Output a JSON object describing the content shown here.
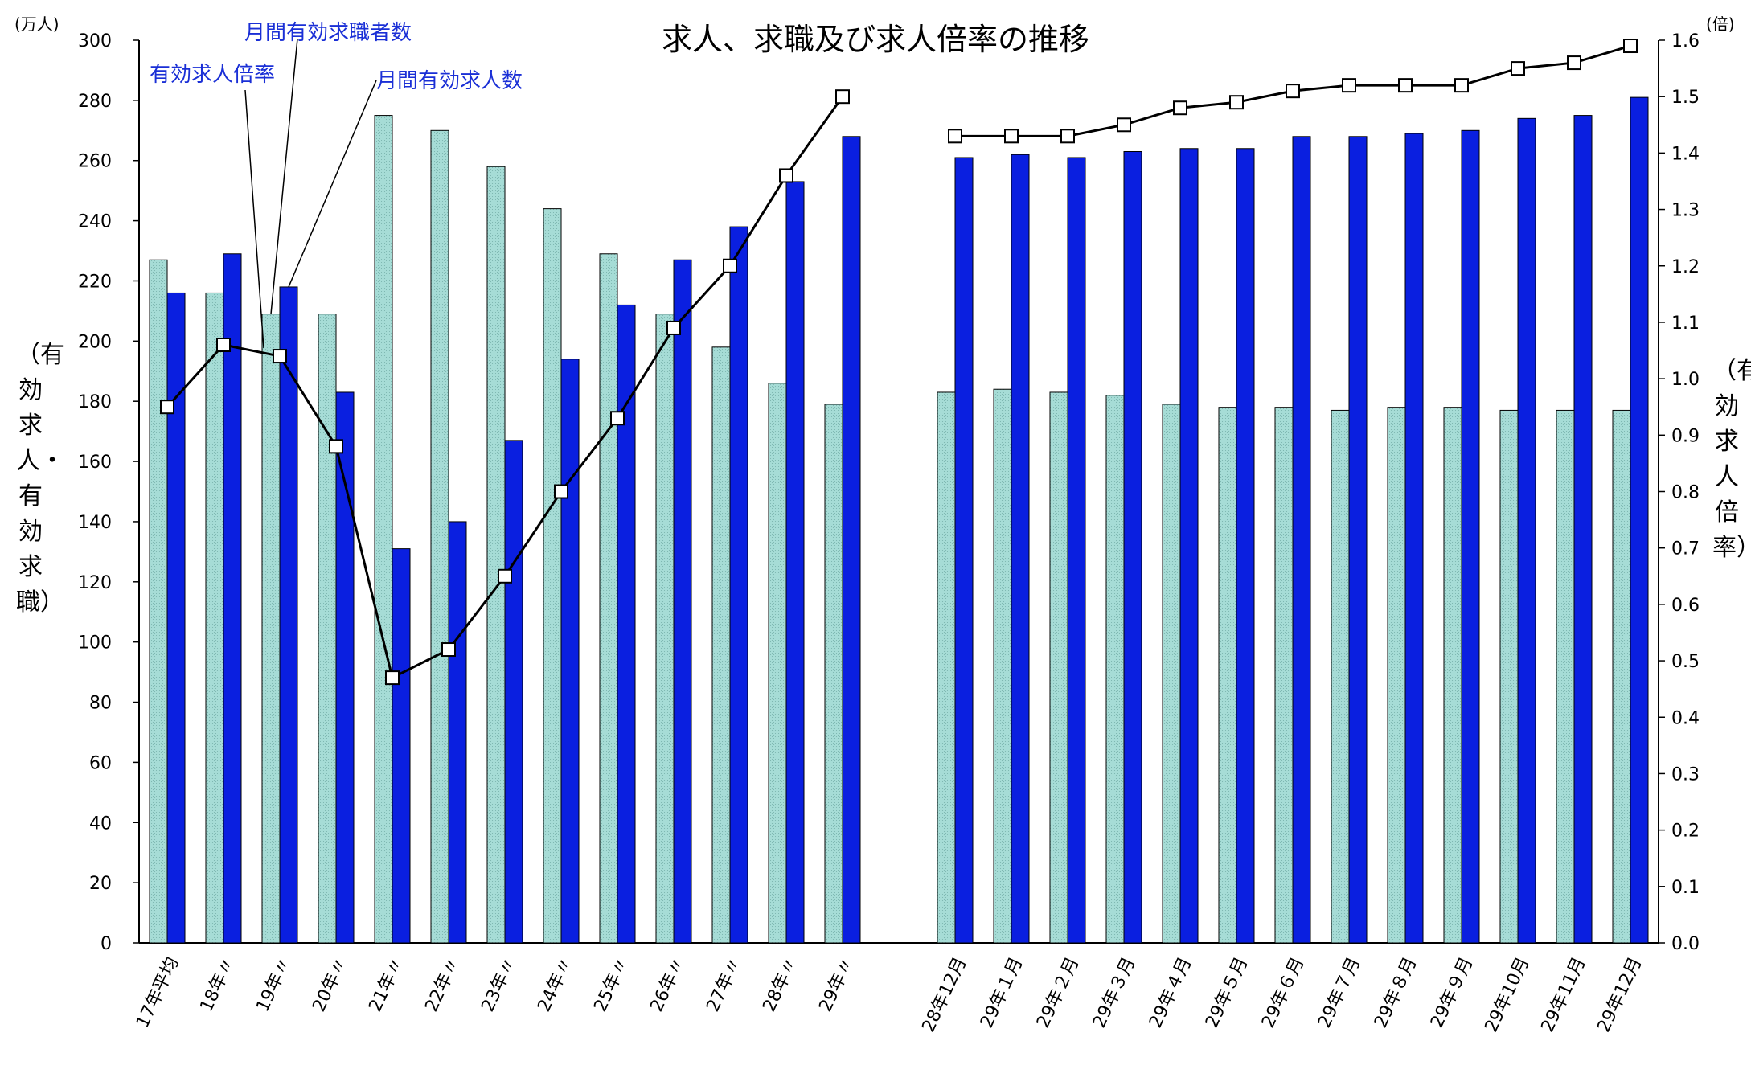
{
  "chart_data": {
    "type": "bar",
    "title": "求人、求職及び求人倍率の推移",
    "left_unit": "(万人)",
    "right_unit": "(倍)",
    "ylabel": "（有効求人・有効求職）",
    "y2label": "（有効求人倍率）",
    "ylim": [
      0,
      300
    ],
    "y_ticks": [
      0,
      20,
      40,
      60,
      80,
      100,
      120,
      140,
      160,
      180,
      200,
      220,
      240,
      260,
      280,
      300
    ],
    "y2lim": [
      0.0,
      1.6
    ],
    "y2_ticks": [
      "0.0",
      "0.1",
      "0.2",
      "0.3",
      "0.4",
      "0.5",
      "0.6",
      "0.7",
      "0.8",
      "0.9",
      "1.0",
      "1.1",
      "1.2",
      "1.3",
      "1.4",
      "1.5",
      "1.6"
    ],
    "grid": false,
    "categories": [
      "17年平均",
      "18年〃",
      "19年〃",
      "20年〃",
      "21年〃",
      "22年〃",
      "23年〃",
      "24年〃",
      "25年〃",
      "26年〃",
      "27年〃",
      "28年〃",
      "29年〃",
      "",
      "28年12月",
      "29年１月",
      "29年２月",
      "29年３月",
      "29年４月",
      "29年５月",
      "29年６月",
      "29年７月",
      "29年８月",
      "29年９月",
      "29年10月",
      "29年11月",
      "29年12月"
    ],
    "series": [
      {
        "name": "月間有効求職者数",
        "type": "bar",
        "axis": "left",
        "color": "#a6dcd6",
        "values": [
          227,
          216,
          209,
          209,
          275,
          270,
          258,
          244,
          229,
          209,
          198,
          186,
          179,
          null,
          183,
          184,
          183,
          182,
          179,
          178,
          178,
          177,
          178,
          178,
          177,
          177,
          177
        ]
      },
      {
        "name": "月間有効求人数",
        "type": "bar",
        "axis": "left",
        "color": "#0a1fe0",
        "values": [
          216,
          229,
          218,
          183,
          131,
          140,
          167,
          194,
          212,
          227,
          238,
          253,
          268,
          null,
          261,
          262,
          261,
          263,
          264,
          264,
          268,
          268,
          269,
          270,
          274,
          275,
          281
        ]
      },
      {
        "name": "有効求人倍率",
        "type": "line",
        "axis": "right",
        "color": "#000000",
        "values": [
          0.95,
          1.06,
          1.04,
          0.88,
          0.47,
          0.52,
          0.65,
          0.8,
          0.93,
          1.09,
          1.2,
          1.36,
          1.5,
          null,
          1.43,
          1.43,
          1.43,
          1.45,
          1.48,
          1.49,
          1.51,
          1.52,
          1.52,
          1.52,
          1.55,
          1.56,
          1.59
        ]
      }
    ],
    "annotations": [
      {
        "text": "有効求人倍率",
        "target_series": 2,
        "target_index": 2
      },
      {
        "text": "月間有効求職者数",
        "target_series": 0,
        "target_index": 2
      },
      {
        "text": "月間有効求人数",
        "target_series": 1,
        "target_index": 2
      }
    ]
  }
}
